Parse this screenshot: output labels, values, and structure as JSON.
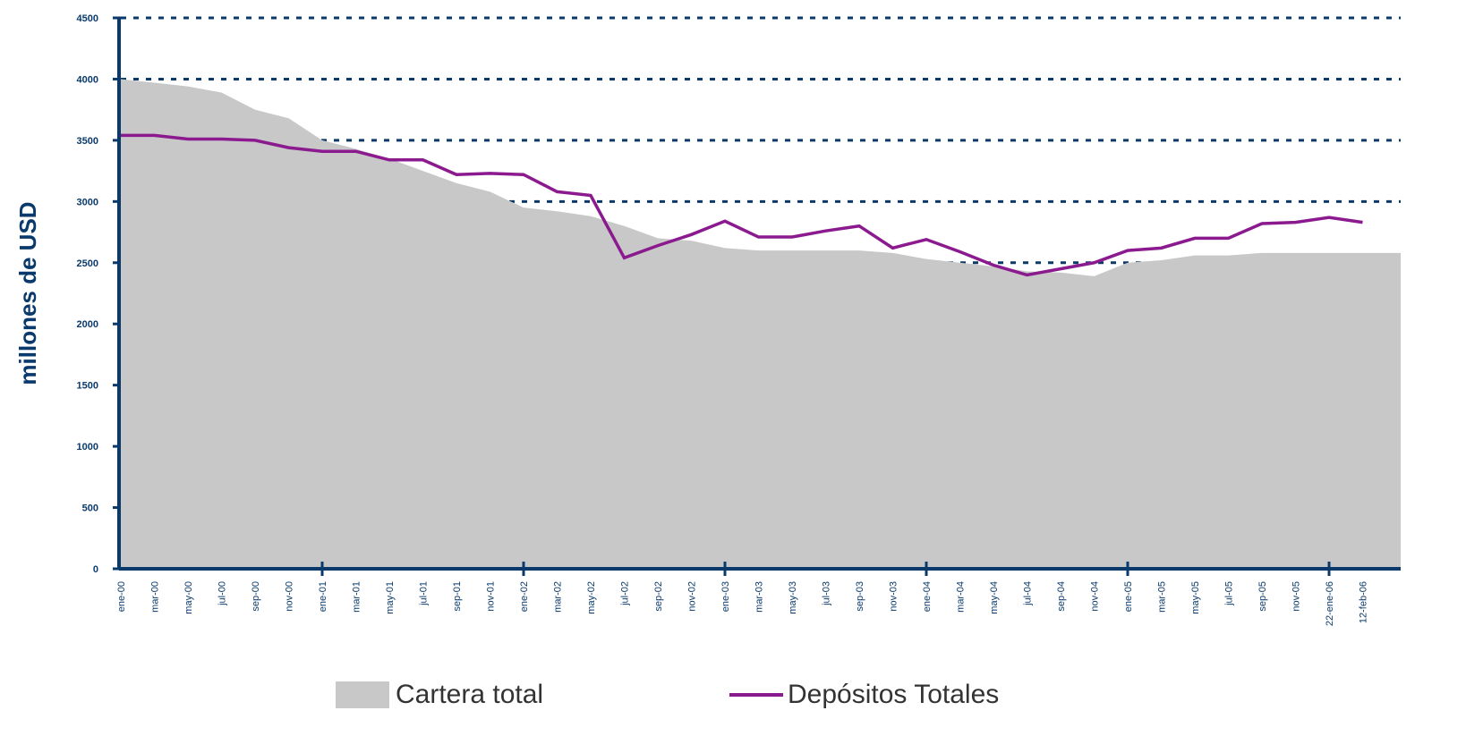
{
  "chart_data": {
    "type": "line",
    "y_label": "millones de USD",
    "categories": [
      "ene-00",
      "mar-00",
      "may-00",
      "jul-00",
      "sep-00",
      "nov-00",
      "ene-01",
      "mar-01",
      "may-01",
      "jul-01",
      "sep-01",
      "nov-01",
      "ene-02",
      "mar-02",
      "may-02",
      "jul-02",
      "sep-02",
      "nov-02",
      "ene-03",
      "mar-03",
      "may-03",
      "jul-03",
      "sep-03",
      "nov-03",
      "ene-04",
      "mar-04",
      "may-04",
      "jul-04",
      "sep-04",
      "nov-04",
      "ene-05",
      "mar-05",
      "may-05",
      "jul-05",
      "sep-05",
      "nov-05",
      "22-ene-06",
      "12-feb-06"
    ],
    "series": [
      {
        "name": "Cartera total",
        "kind": "area",
        "color": "#c8c8c8",
        "values": [
          4000,
          3970,
          3940,
          3890,
          3750,
          3680,
          3500,
          3430,
          3350,
          3250,
          3150,
          3080,
          2950,
          2920,
          2880,
          2800,
          2700,
          2680,
          2620,
          2600,
          2600,
          2600,
          2600,
          2580,
          2530,
          2500,
          2470,
          2430,
          2420,
          2390,
          2500,
          2520,
          2560,
          2560,
          2580,
          2580,
          2580,
          2580
        ]
      },
      {
        "name": "Depósitos Totales",
        "kind": "line",
        "color": "#8b1a8f",
        "values": [
          3540,
          3540,
          3510,
          3510,
          3500,
          3440,
          3410,
          3410,
          3340,
          3340,
          3220,
          3230,
          3220,
          3080,
          3050,
          2540,
          2640,
          2730,
          2840,
          2710,
          2710,
          2760,
          2800,
          2620,
          2690,
          2590,
          2480,
          2400,
          2450,
          2500,
          2600,
          2620,
          2700,
          2700,
          2820,
          2830,
          2870,
          2830
        ]
      }
    ],
    "ylim": [
      0,
      4500
    ],
    "yticks": [
      0,
      500,
      1000,
      1500,
      2000,
      2500,
      3000,
      3500,
      4000,
      4500
    ],
    "grid": true,
    "grid_color": "#0a3a6b",
    "axis_color": "#0a3a6b",
    "legend": "bottom"
  }
}
